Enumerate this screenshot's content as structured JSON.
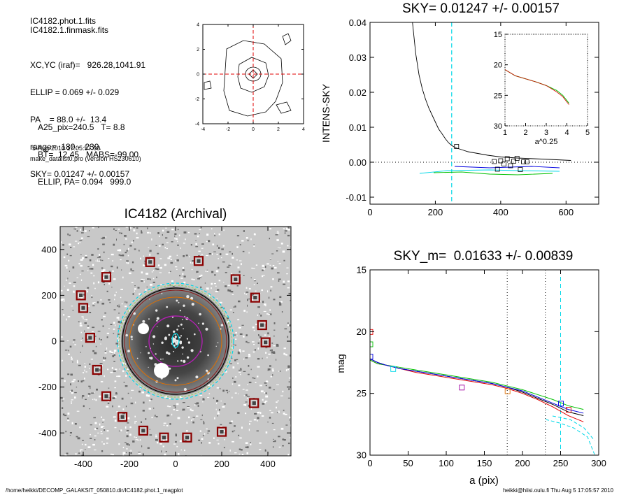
{
  "header": {
    "lines_a": [
      "IC4182.phot.1.fits",
      "IC4182.1.finmask.fits"
    ],
    "lines_b": [
      "XC,YC (iraf)=   926.28,1041.91",
      "ELLIP = 0.069 +/- 0.029",
      "PA    = 88.0 +/-  13.4",
      "range=  180.-  230.",
      "SKY= 0.01247 +/- 0.00157"
    ],
    "lines_c": [
      "A25_pix=240.5   T= 8.8",
      "BT=  12.45   MABS=-99.00",
      "ELLIP, PA= 0.094   999.0"
    ],
    "date": "5-Aug-2010 17:05:57.00",
    "program": "make_datalist0.pro (version HS230610)"
  },
  "footer": {
    "left": "/home/heikki/DECOMP_GALAKSIT_050810.dir/IC4182.phot.1_magplot",
    "right": "heikki@hiisi.oulu.fi  Thu Aug  5 17:05:57 2010"
  },
  "colors": {
    "black": "#000000",
    "cyan": "#00d8e8",
    "red": "#e00000",
    "green": "#00c000",
    "blue": "#0000e0",
    "magenta": "#a000a0",
    "orange": "#e07000",
    "darkred": "#8b0000"
  },
  "chart_data": [
    {
      "id": "centroid",
      "type": "contour",
      "xlim": [
        -4,
        4
      ],
      "ylim": [
        -4,
        4
      ],
      "xticks": [
        "-4",
        "-2",
        "0",
        "2",
        "4"
      ],
      "yticks": [
        "-4",
        "-2",
        "0",
        "2",
        "4"
      ],
      "crosshair": {
        "x": 0,
        "y": 0,
        "color": "red",
        "style": "dashed"
      }
    },
    {
      "id": "sky",
      "type": "line",
      "title": "SKY= 0.01247 +/- 0.00157",
      "xlabel": "",
      "ylabel": "INTENS-SKY",
      "xlim": [
        0,
        700
      ],
      "ylim": [
        -0.012,
        0.04
      ],
      "xticks": [
        "0",
        "200",
        "400",
        "600"
      ],
      "yticks": [
        "-0.01",
        "0.00",
        "0.01",
        "0.02",
        "0.03",
        "0.04"
      ],
      "profile_x": [
        130,
        140,
        150,
        160,
        170,
        180,
        190,
        200,
        210,
        220,
        230,
        240,
        250,
        260,
        280,
        300,
        330,
        360,
        400,
        450,
        500,
        550,
        615
      ],
      "profile_y": [
        0.04,
        0.031,
        0.025,
        0.021,
        0.018,
        0.0155,
        0.0135,
        0.0115,
        0.0095,
        0.0082,
        0.0068,
        0.0056,
        0.0048,
        0.0042,
        0.0036,
        0.003,
        0.0025,
        0.002,
        0.0015,
        0.0012,
        0.001,
        0.0008,
        0.0005
      ],
      "square_markers_x": [
        265,
        380,
        390,
        400,
        410,
        420,
        430,
        440,
        450,
        460,
        470,
        480
      ],
      "square_markers_y": [
        0.0045,
        0.0002,
        -0.002,
        0.0004,
        -0.0005,
        0.001,
        -0.001,
        0.0003,
        0.0011,
        -0.0021,
        0.0001,
        0.0001
      ],
      "vline": {
        "x": 250,
        "color": "cyan",
        "style": "dashed"
      },
      "zero_line": {
        "y": 0.0,
        "style": "dotted"
      },
      "inset": {
        "xlabel": "a^0.25",
        "xlim": [
          1,
          5
        ],
        "ylim": [
          15,
          30
        ],
        "xticks": [
          "1",
          "2",
          "3",
          "4",
          "5"
        ],
        "yticks": [
          "15",
          "20",
          "25",
          "30"
        ],
        "x": [
          1.0,
          1.5,
          2.0,
          2.5,
          3.0,
          3.5,
          3.8,
          4.1
        ],
        "y": [
          20.8,
          21.8,
          22.3,
          22.8,
          23.4,
          24.2,
          25.0,
          26.3
        ]
      }
    },
    {
      "id": "image",
      "type": "image",
      "title": "IC4182 (Archival)",
      "xlim": [
        -500,
        500
      ],
      "ylim": [
        -500,
        500
      ],
      "xticks": [
        "-400",
        "-200",
        "0",
        "200",
        "400"
      ],
      "yticks": [
        "-400",
        "-200",
        "0",
        "200",
        "400"
      ],
      "sky_boxes_x": [
        -300,
        -110,
        100,
        260,
        345,
        375,
        390,
        -410,
        -400,
        -370,
        -340,
        -300,
        -230,
        -140,
        -50,
        50,
        200,
        340
      ],
      "sky_boxes_y": [
        280,
        345,
        350,
        270,
        190,
        70,
        -5,
        200,
        145,
        15,
        -125,
        -240,
        -330,
        -390,
        -420,
        -420,
        -395,
        -270
      ]
    },
    {
      "id": "mag",
      "type": "line",
      "title": "SKY_m=  0.01633 +/- 0.00839",
      "xlabel": "a (pix)",
      "ylabel": "mag",
      "xlim": [
        0,
        300
      ],
      "ylim": [
        30,
        15
      ],
      "xticks": [
        "0",
        "50",
        "100",
        "150",
        "200",
        "250",
        "300"
      ],
      "yticks": [
        "15",
        "20",
        "25",
        "30"
      ],
      "x": [
        0,
        10,
        20,
        40,
        60,
        80,
        100,
        120,
        140,
        160,
        180,
        200,
        220,
        240,
        260,
        280
      ],
      "series": [
        {
          "color": "black",
          "y": [
            22.2,
            22.5,
            22.7,
            23.0,
            23.2,
            23.4,
            23.6,
            23.8,
            24.0,
            24.2,
            24.5,
            24.9,
            25.4,
            25.9,
            26.5,
            26.8
          ]
        },
        {
          "color": "red",
          "y": [
            22.3,
            22.6,
            22.7,
            23.0,
            23.3,
            23.5,
            23.7,
            23.9,
            24.1,
            24.3,
            24.6,
            25.0,
            25.5,
            26.1,
            26.8,
            27.3
          ]
        },
        {
          "color": "green",
          "y": [
            22.3,
            22.6,
            22.7,
            22.9,
            23.1,
            23.3,
            23.5,
            23.7,
            23.9,
            24.1,
            24.4,
            24.7,
            25.1,
            25.5,
            26.0,
            26.3
          ]
        },
        {
          "color": "blue",
          "y": [
            22.2,
            22.5,
            22.7,
            23.0,
            23.2,
            23.4,
            23.6,
            23.8,
            24.0,
            24.2,
            24.5,
            24.8,
            25.3,
            25.8,
            26.3,
            26.6
          ]
        }
      ],
      "vlines": [
        {
          "x": 180,
          "style": "dotted"
        },
        {
          "x": 230,
          "style": "dotted"
        },
        {
          "x": 250,
          "color": "cyan",
          "style": "dashed"
        }
      ]
    }
  ]
}
